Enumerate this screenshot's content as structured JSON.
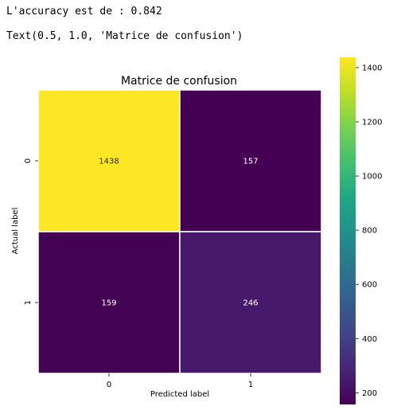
{
  "output": {
    "accuracy_line": "L'accuracy est de : 0.842",
    "text_line": "Text(0.5, 1.0, 'Matrice de confusion')"
  },
  "chart_data": {
    "type": "heatmap",
    "title": "Matrice de confusion",
    "xlabel": "Predicted label",
    "ylabel": "Actual label",
    "x_categories": [
      "0",
      "1"
    ],
    "y_categories": [
      "0",
      "1"
    ],
    "values": [
      [
        1438,
        157
      ],
      [
        159,
        246
      ]
    ],
    "colormap": "viridis",
    "color_range": [
      157,
      1438
    ],
    "colorbar_ticks": [
      200,
      400,
      600,
      800,
      1000,
      1200,
      1400
    ],
    "grid": false,
    "legend": "colorbar-right"
  }
}
